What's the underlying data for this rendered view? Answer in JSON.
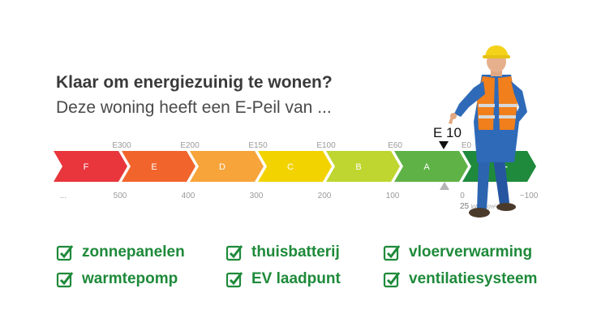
{
  "header": {
    "title": "Klaar om energiezuinig te wonen?",
    "subtitle": "Deze woning heeft een E-Peil van ..."
  },
  "scale": {
    "segments": [
      {
        "label": "F",
        "color": "#e8363c"
      },
      {
        "label": "E",
        "color": "#f1642c"
      },
      {
        "label": "D",
        "color": "#f7a43a"
      },
      {
        "label": "C",
        "color": "#f2d300"
      },
      {
        "label": "B",
        "color": "#bfd630"
      },
      {
        "label": "A",
        "color": "#5fb246"
      },
      {
        "label": "+",
        "color": "#1f8a3c"
      }
    ],
    "top_ticks": [
      "E300",
      "E200",
      "E150",
      "E100",
      "E60",
      "E0"
    ],
    "bottom_ticks": [
      "...",
      "500",
      "400",
      "300",
      "200",
      "100",
      "0",
      "−100"
    ],
    "unit_value": "25",
    "unit_label": "kWh / (m² jaar)",
    "marker_label": "E 10"
  },
  "features": [
    {
      "label": "zonnepanelen"
    },
    {
      "label": "thuisbatterij"
    },
    {
      "label": "vloerverwarming"
    },
    {
      "label": "warmtepomp"
    },
    {
      "label": "EV laadpunt"
    },
    {
      "label": "ventilatiesysteem"
    }
  ],
  "colors": {
    "check": "#1e8a3a",
    "accent_vest": "#f07f1c"
  }
}
